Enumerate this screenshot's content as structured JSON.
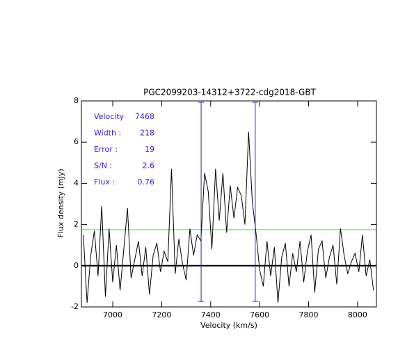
{
  "chart_data": {
    "type": "line",
    "title": "PGC2099203-14312+3722-cdg2018-GBT",
    "xlabel": "Velocity (km/s)",
    "ylabel": "Flux density (mJy)",
    "xlim": [
      6872,
      8077
    ],
    "ylim": [
      -2,
      8
    ],
    "xticks": [
      7000,
      7200,
      7400,
      7600,
      7800,
      8000
    ],
    "yticks": [
      -2,
      0,
      2,
      4,
      6,
      8
    ],
    "color": "#000000",
    "x": [
      6880,
      6895,
      6910,
      6925,
      6940,
      6955,
      6970,
      6985,
      7000,
      7015,
      7030,
      7045,
      7060,
      7075,
      7090,
      7105,
      7120,
      7135,
      7150,
      7165,
      7180,
      7195,
      7210,
      7225,
      7240,
      7255,
      7270,
      7285,
      7300,
      7315,
      7330,
      7345,
      7360,
      7375,
      7390,
      7405,
      7420,
      7435,
      7450,
      7465,
      7480,
      7495,
      7510,
      7525,
      7540,
      7555,
      7570,
      7585,
      7600,
      7615,
      7630,
      7645,
      7660,
      7675,
      7690,
      7705,
      7720,
      7735,
      7750,
      7765,
      7780,
      7795,
      7810,
      7825,
      7840,
      7855,
      7870,
      7885,
      7900,
      7915,
      7930,
      7945,
      7960,
      7975,
      7990,
      8005,
      8020,
      8035,
      8050,
      8065
    ],
    "values": [
      1.5,
      -1.8,
      0.5,
      1.7,
      -0.5,
      2.9,
      -1.5,
      1.8,
      -0.8,
      1.0,
      -1.2,
      0.8,
      2.8,
      -0.6,
      0.3,
      1.2,
      -0.5,
      0.9,
      -1.4,
      0.5,
      1.1,
      -0.3,
      0.7,
      0.2,
      4.7,
      -0.4,
      1.3,
      0.1,
      -0.7,
      1.8,
      0.5,
      1.5,
      1.2,
      4.5,
      3.6,
      0.8,
      4.7,
      2.2,
      4.5,
      1.6,
      3.9,
      2.3,
      3.8,
      3.4,
      2.0,
      6.5,
      3.1,
      1.6,
      -0.2,
      -1.0,
      1.2,
      -0.5,
      0.9,
      -1.8,
      0.4,
      1.1,
      -1.0,
      0.6,
      -0.3,
      1.2,
      -0.8,
      0.7,
      1.5,
      -1.3,
      0.8,
      1.2,
      -0.6,
      0.4,
      1.0,
      -0.9,
      1.8,
      0.5,
      -0.4,
      0.2,
      0.6,
      -0.3,
      1.5,
      -0.5,
      0.3,
      -1.2
    ],
    "markers": [
      7361,
      7582
    ],
    "marker_color": "#3322aa",
    "threshold": 1.75,
    "threshold_color": "#33dd33",
    "baseline": 0,
    "annotation_color": "#3322cc",
    "annotations": [
      {
        "label": "Velocity",
        "value": "7468"
      },
      {
        "label": "Width :",
        "value": "218"
      },
      {
        "label": "Error :",
        "value": "19"
      },
      {
        "label": "S/N :",
        "value": "2.6"
      },
      {
        "label": "Flux :",
        "value": "0.76"
      }
    ]
  }
}
